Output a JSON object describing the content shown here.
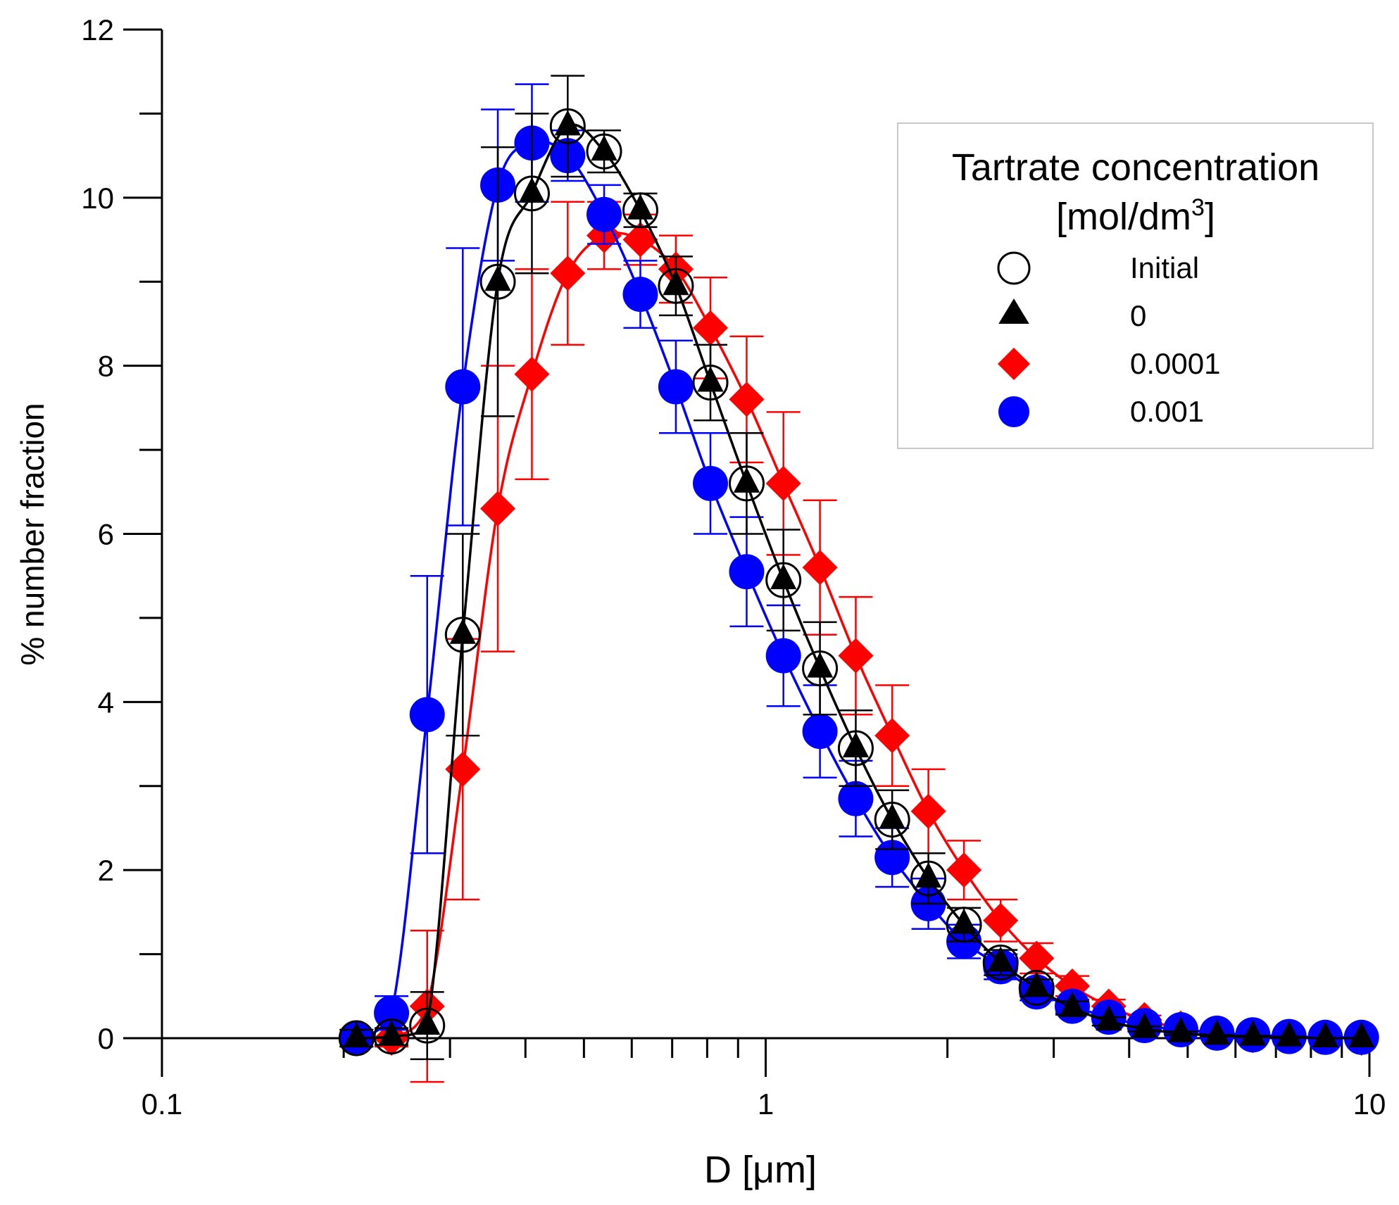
{
  "chart_data": {
    "type": "scatter",
    "xscale": "log",
    "xlim": [
      0.1,
      10
    ],
    "ylim": [
      0,
      12
    ],
    "xlabel": "D [μm]",
    "ylabel": "% number fraction",
    "xticks": [
      0.1,
      1,
      10
    ],
    "xtick_labels": [
      "0.1",
      "1",
      "10"
    ],
    "yticks": [
      0,
      2,
      4,
      6,
      8,
      10,
      12
    ],
    "ytick_labels": [
      "0",
      "2",
      "4",
      "6",
      "8",
      "10",
      "12"
    ],
    "legend": {
      "title_line1": "Tartrate concentration",
      "title_line2_pre": "[mol/dm",
      "title_line2_sup": "3",
      "title_line2_post": "]",
      "position": "top-right"
    },
    "series": [
      {
        "name": "Initial",
        "marker": "open-circle",
        "color": "#000000",
        "x": [
          0.21,
          0.24,
          0.275,
          0.315,
          0.36,
          0.41,
          0.47,
          0.54,
          0.62,
          0.71,
          0.81,
          0.93,
          1.07,
          1.23,
          1.41,
          1.62,
          1.86,
          2.13,
          2.45,
          2.81
        ],
        "y": [
          0.0,
          0.02,
          0.15,
          4.8,
          9.0,
          10.05,
          10.85,
          10.55,
          9.85,
          8.95,
          7.8,
          6.6,
          5.45,
          4.4,
          3.45,
          2.6,
          1.9,
          1.35,
          0.9,
          0.6
        ]
      },
      {
        "name": "0",
        "marker": "filled-triangle",
        "color": "#000000",
        "line": true,
        "x": [
          0.21,
          0.24,
          0.275,
          0.315,
          0.36,
          0.41,
          0.47,
          0.54,
          0.62,
          0.71,
          0.81,
          0.93,
          1.07,
          1.23,
          1.41,
          1.62,
          1.86,
          2.13,
          2.45,
          2.81,
          3.22,
          3.7,
          4.24,
          4.87,
          5.59,
          6.41,
          7.36,
          8.45,
          9.7
        ],
        "y": [
          0.0,
          0.02,
          0.15,
          4.8,
          9.0,
          10.05,
          10.85,
          10.55,
          9.85,
          8.95,
          7.8,
          6.6,
          5.45,
          4.4,
          3.45,
          2.6,
          1.9,
          1.35,
          0.9,
          0.6,
          0.36,
          0.2,
          0.11,
          0.06,
          0.03,
          0.02,
          0.01,
          0.0,
          0.0
        ],
        "err": [
          0.1,
          0.1,
          0.4,
          1.2,
          1.6,
          0.95,
          0.6,
          0.25,
          0.2,
          0.35,
          0.45,
          0.6,
          0.6,
          0.55,
          0.45,
          0.35,
          0.3,
          0.2,
          0.15,
          0.1,
          0.08,
          0.05,
          0.03,
          0.02,
          0.01,
          0.01,
          0.01,
          0.0,
          0.0
        ]
      },
      {
        "name": "0.0001",
        "marker": "filled-diamond",
        "color": "#ff0000",
        "line": true,
        "x": [
          0.24,
          0.275,
          0.315,
          0.36,
          0.41,
          0.47,
          0.54,
          0.62,
          0.71,
          0.81,
          0.93,
          1.07,
          1.23,
          1.41,
          1.62,
          1.86,
          2.13,
          2.45,
          2.81,
          3.22,
          3.7,
          4.24,
          4.87,
          5.59,
          6.41,
          7.36,
          8.45,
          9.7
        ],
        "y": [
          0.0,
          0.38,
          3.2,
          6.3,
          7.9,
          9.1,
          9.55,
          9.5,
          9.15,
          8.45,
          7.6,
          6.6,
          5.6,
          4.55,
          3.6,
          2.7,
          2.0,
          1.4,
          0.95,
          0.62,
          0.38,
          0.22,
          0.12,
          0.06,
          0.03,
          0.02,
          0.01,
          0.0
        ],
        "err": [
          0.1,
          0.9,
          1.55,
          1.7,
          1.25,
          0.85,
          0.4,
          0.3,
          0.4,
          0.6,
          0.75,
          0.85,
          0.8,
          0.7,
          0.6,
          0.5,
          0.35,
          0.25,
          0.18,
          0.12,
          0.08,
          0.05,
          0.03,
          0.02,
          0.01,
          0.01,
          0.0,
          0.0
        ]
      },
      {
        "name": "0.001",
        "marker": "filled-circle",
        "color": "#0000ff",
        "line": true,
        "x": [
          0.21,
          0.24,
          0.275,
          0.315,
          0.36,
          0.41,
          0.47,
          0.54,
          0.62,
          0.71,
          0.81,
          0.93,
          1.07,
          1.23,
          1.41,
          1.62,
          1.86,
          2.13,
          2.45,
          2.81,
          3.22,
          3.7,
          4.24,
          4.87,
          5.59,
          6.41,
          7.36,
          8.45,
          9.7
        ],
        "y": [
          0.0,
          0.3,
          3.85,
          7.75,
          10.15,
          10.65,
          10.5,
          9.8,
          8.85,
          7.75,
          6.6,
          5.55,
          4.55,
          3.65,
          2.85,
          2.15,
          1.6,
          1.15,
          0.85,
          0.55,
          0.38,
          0.25,
          0.15,
          0.1,
          0.06,
          0.04,
          0.02,
          0.01,
          0.01
        ],
        "err": [
          0.1,
          0.2,
          1.65,
          1.65,
          0.9,
          0.7,
          0.3,
          0.35,
          0.4,
          0.55,
          0.6,
          0.65,
          0.6,
          0.55,
          0.45,
          0.35,
          0.3,
          0.2,
          0.15,
          0.1,
          0.08,
          0.05,
          0.03,
          0.02,
          0.01,
          0.01,
          0.01,
          0.0,
          0.0
        ]
      }
    ]
  }
}
